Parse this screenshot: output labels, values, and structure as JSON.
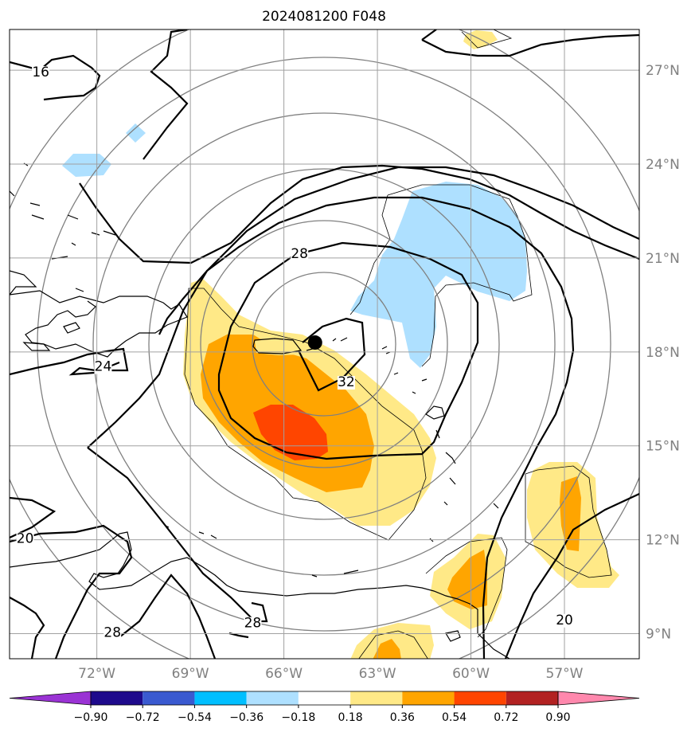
{
  "title": "2024081200 F048",
  "map": {
    "projection": "plate-carree",
    "lon_range": [
      -74.8,
      -54.6
    ],
    "lat_range": [
      8.2,
      28.3
    ],
    "grid": true,
    "x_ticks": [
      {
        "lon": -72,
        "label": "72°W"
      },
      {
        "lon": -69,
        "label": "69°W"
      },
      {
        "lon": -66,
        "label": "66°W"
      },
      {
        "lon": -63,
        "label": "63°W"
      },
      {
        "lon": -60,
        "label": "60°W"
      },
      {
        "lon": -57,
        "label": "57°W"
      }
    ],
    "y_ticks": [
      {
        "lat": 27,
        "label": "27°N"
      },
      {
        "lat": 24,
        "label": "24°N"
      },
      {
        "lat": 21,
        "label": "21°N"
      },
      {
        "lat": 18,
        "label": "18°N"
      },
      {
        "lat": 15,
        "label": "15°N"
      },
      {
        "lat": 12,
        "label": "12°N"
      },
      {
        "lat": 9,
        "label": "9°N"
      }
    ],
    "storm_center": {
      "lon": -65.0,
      "lat": 18.3
    }
  },
  "contour_labels": [
    {
      "text": "16",
      "lon": -73.8,
      "lat": 26.8
    },
    {
      "text": "28",
      "lon": -65.5,
      "lat": 21.0
    },
    {
      "text": "24",
      "lon": -71.8,
      "lat": 17.4
    },
    {
      "text": "32",
      "lon": -64.0,
      "lat": 16.9
    },
    {
      "text": "20",
      "lon": -74.3,
      "lat": 11.9
    },
    {
      "text": "28",
      "lon": -71.5,
      "lat": 8.9
    },
    {
      "text": "28",
      "lon": -67.0,
      "lat": 9.2
    },
    {
      "text": "20",
      "lon": -57.0,
      "lat": 9.3
    }
  ],
  "colorbar": {
    "bounds": [
      -0.9,
      -0.72,
      -0.54,
      -0.36,
      -0.18,
      0.18,
      0.36,
      0.54,
      0.72,
      0.9
    ],
    "tick_labels": [
      "−0.90",
      "−0.72",
      "−0.54",
      "−0.36",
      "−0.18",
      "0.18",
      "0.36",
      "0.54",
      "0.72",
      "0.90"
    ],
    "colors": [
      "#1e0a8c",
      "#3a5ad0",
      "#00bfff",
      "#aee0ff",
      "#ffffff",
      "#ffe987",
      "#ffa500",
      "#ff4500",
      "#b22222"
    ],
    "extend_min_color": "#9a33d4",
    "extend_max_color": "#ff88ad"
  }
}
